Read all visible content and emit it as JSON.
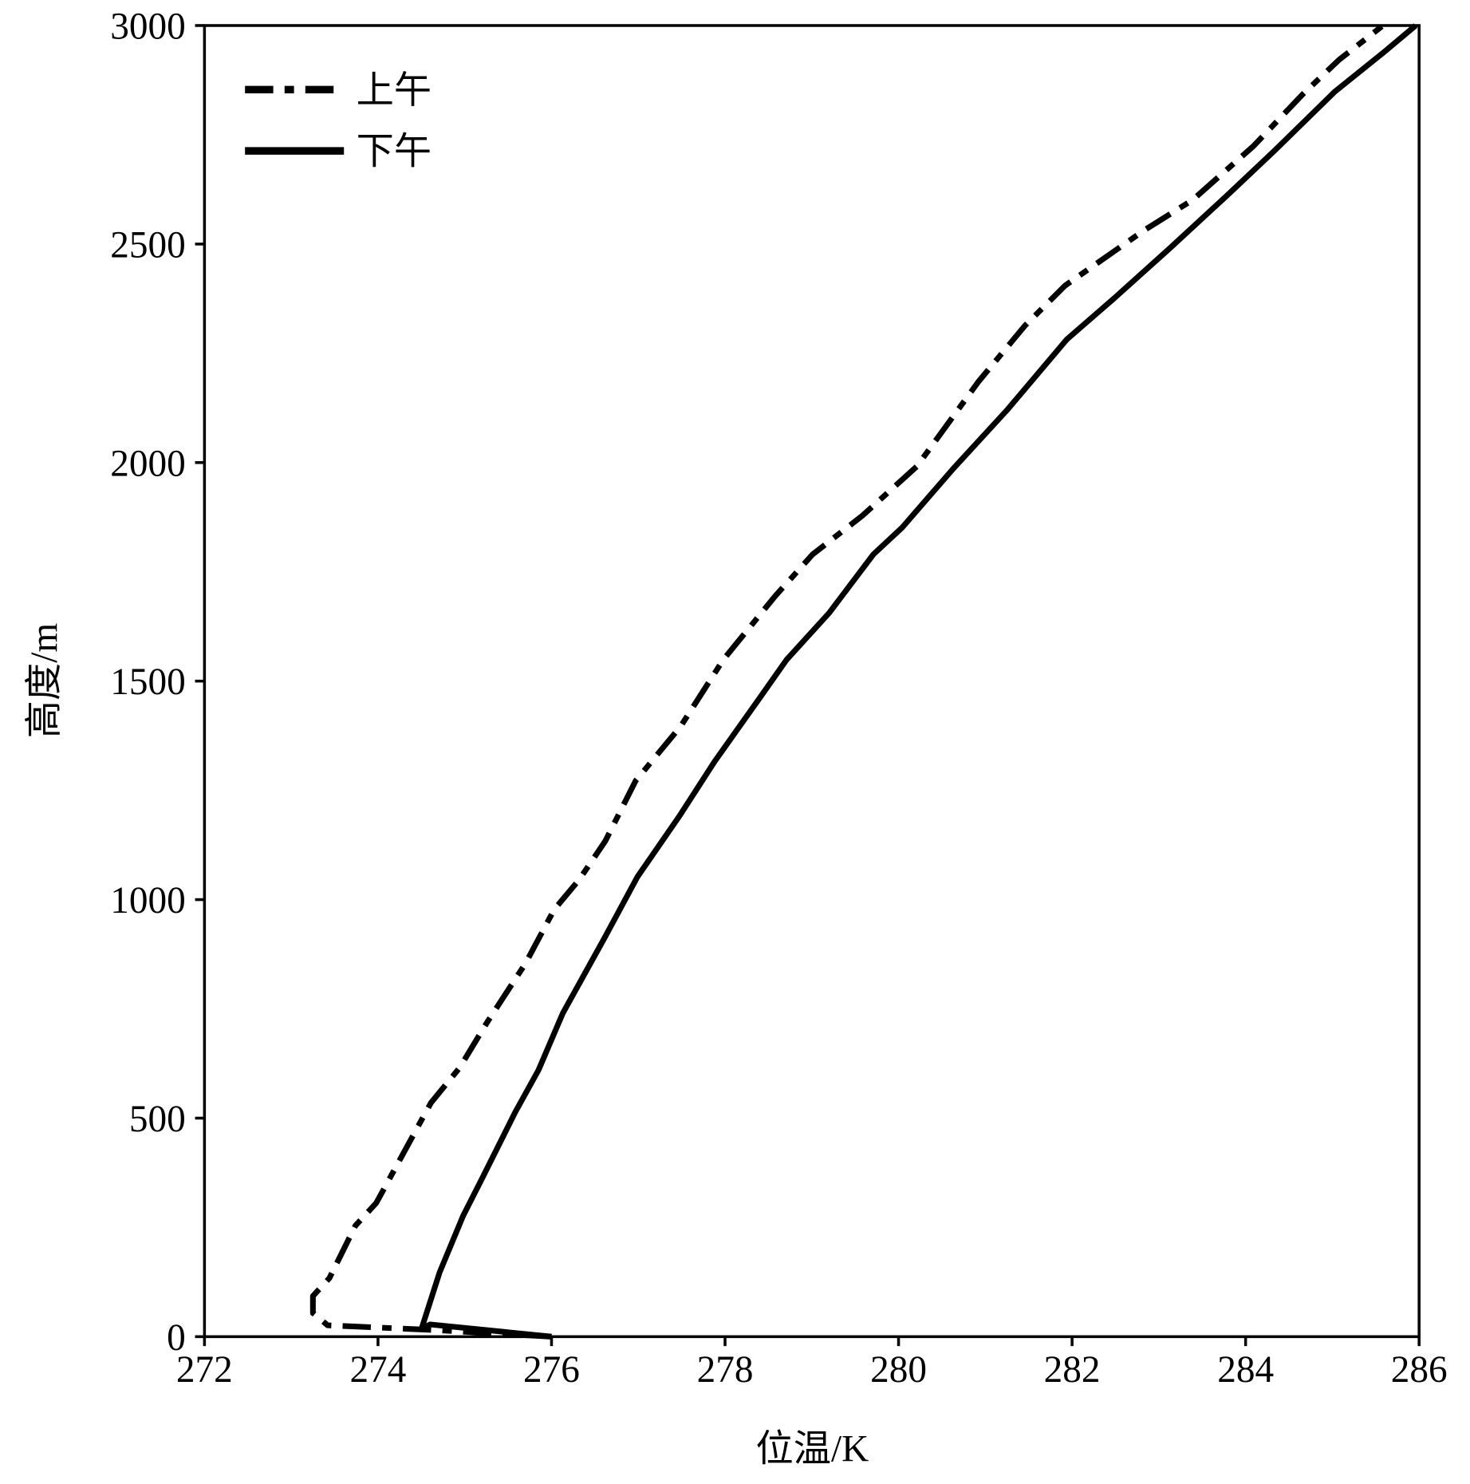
{
  "chart_data": {
    "type": "line",
    "x_label": "位温/K",
    "y_label": "高度/m",
    "xlim": [
      272,
      286
    ],
    "xticks": [
      272,
      274,
      276,
      278,
      280,
      282,
      284,
      286
    ],
    "ylim": [
      0,
      3000
    ],
    "yticks": [
      0,
      500,
      1000,
      1500,
      2000,
      2500,
      3000
    ],
    "legend": "upper left",
    "series": [
      {
        "name": "上午",
        "color": "#000000",
        "dash": true,
        "x": [
          276.0,
          274.67,
          273.42,
          273.25,
          273.25,
          273.44,
          273.74,
          273.98,
          274.61,
          274.94,
          275.26,
          275.7,
          276.03,
          276.32,
          276.62,
          276.97,
          277.49,
          277.98,
          278.58,
          279.01,
          279.58,
          280.21,
          280.92,
          281.46,
          281.92,
          282.82,
          283.39,
          284.09,
          284.66,
          285.08,
          285.57
        ],
        "values": [
          0,
          15,
          26,
          54,
          93,
          134,
          254,
          306,
          535,
          615,
          720,
          854,
          977,
          1046,
          1134,
          1272,
          1397,
          1549,
          1695,
          1790,
          1878,
          1991,
          2185,
          2314,
          2405,
          2530,
          2601,
          2724,
          2843,
          2922,
          2998
        ]
      },
      {
        "name": "下午",
        "color": "#000000",
        "dash": false,
        "x": [
          276.0,
          274.6,
          274.5,
          274.71,
          274.98,
          275.2,
          275.58,
          275.85,
          276.13,
          276.61,
          276.99,
          277.48,
          277.88,
          278.38,
          278.71,
          279.2,
          279.71,
          280.04,
          280.63,
          281.25,
          281.94,
          282.48,
          283.13,
          283.78,
          284.33,
          285.03,
          285.6,
          285.96
        ],
        "values": [
          0,
          28,
          17,
          147,
          276,
          362,
          513,
          610,
          740,
          912,
          1052,
          1193,
          1316,
          1456,
          1549,
          1656,
          1790,
          1851,
          1986,
          2120,
          2282,
          2375,
          2491,
          2610,
          2713,
          2849,
          2940,
          3000
        ]
      }
    ]
  }
}
